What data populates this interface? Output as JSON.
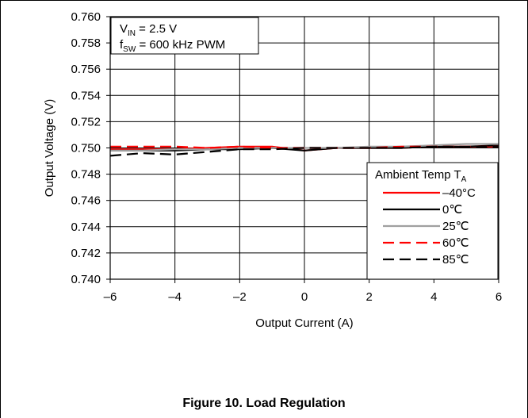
{
  "caption": "Figure 10. Load Regulation",
  "chart_data": {
    "type": "line",
    "title": "",
    "xlabel": "Output Current (A)",
    "ylabel": "Output Voltage (V)",
    "xlim": [
      -6,
      6
    ],
    "ylim": [
      0.74,
      0.76
    ],
    "xticks": [
      -6,
      -4,
      -2,
      0,
      2,
      4,
      6
    ],
    "xtick_labels": [
      "–6",
      "–4",
      "–2",
      "0",
      "2",
      "4",
      "6"
    ],
    "yticks": [
      0.74,
      0.742,
      0.744,
      0.746,
      0.748,
      0.75,
      0.752,
      0.754,
      0.756,
      0.758,
      0.76
    ],
    "ytick_labels": [
      "0.740",
      "0.742",
      "0.744",
      "0.746",
      "0.748",
      "0.750",
      "0.752",
      "0.754",
      "0.756",
      "0.758",
      "0.760"
    ],
    "grid": true,
    "conditions": [
      {
        "main": "V",
        "sub": "IN",
        "rest": " = 2.5 V"
      },
      {
        "main": "f",
        "sub": "SW",
        "rest": " = 600 kHz PWM"
      }
    ],
    "legend": {
      "title_main": "Ambient Temp T",
      "title_sub": "A",
      "placement": "right"
    },
    "x": [
      -6,
      -5,
      -4,
      -3,
      -2,
      -1,
      0,
      1,
      2,
      3,
      4,
      5,
      6
    ],
    "series": [
      {
        "name": "–40°C",
        "color": "#ff0000",
        "dash": "solid",
        "values": [
          0.7499,
          0.7499,
          0.7499,
          0.75,
          0.7501,
          0.7501,
          0.7498,
          0.75,
          0.75,
          0.75,
          0.7501,
          0.7501,
          0.7501
        ]
      },
      {
        "name": "0℃",
        "color": "#000000",
        "dash": "solid",
        "values": [
          0.7498,
          0.7498,
          0.7498,
          0.7499,
          0.7499,
          0.75,
          0.7498,
          0.75,
          0.75,
          0.75,
          0.7501,
          0.7501,
          0.7502
        ]
      },
      {
        "name": "25℃",
        "color": "#a0a0a0",
        "dash": "solid",
        "values": [
          0.7498,
          0.7498,
          0.7499,
          0.7499,
          0.75,
          0.75,
          0.75,
          0.75,
          0.7501,
          0.7501,
          0.7502,
          0.7503,
          0.7503
        ]
      },
      {
        "name": "60℃",
        "color": "#ff0000",
        "dash": "dashed",
        "values": [
          0.7501,
          0.7501,
          0.7501,
          0.75,
          0.7501,
          0.75,
          0.75,
          0.75,
          0.75,
          0.7501,
          0.7501,
          0.7501,
          0.7501
        ]
      },
      {
        "name": "85℃",
        "color": "#000000",
        "dash": "dashed",
        "values": [
          0.7494,
          0.7496,
          0.7495,
          0.7497,
          0.7499,
          0.7499,
          0.75,
          0.75,
          0.75,
          0.75,
          0.7501,
          0.7501,
          0.7501
        ]
      }
    ]
  }
}
